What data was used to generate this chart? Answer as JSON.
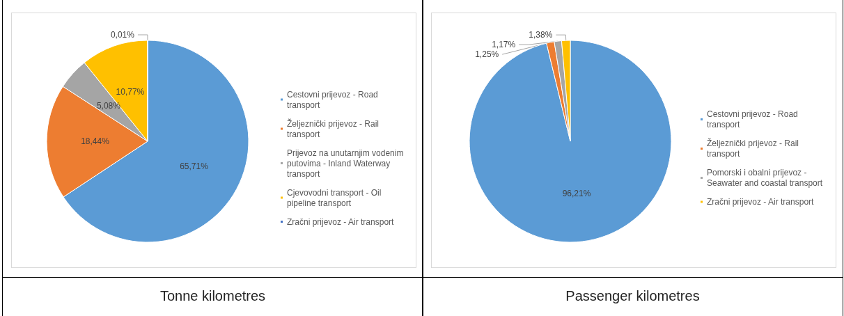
{
  "chart_data": [
    {
      "type": "pie",
      "title": "Tonne kilometres",
      "categories": [
        "Cestovni prijevoz - Road transport",
        "Željeznički prijevoz - Rail transport",
        "Prijevoz na unutarnjim vodenim putovima - Inland Waterway transport",
        "Cjevovodni transport - Oil pipeline transport",
        "Zračni prijevoz - Air transport"
      ],
      "values": [
        65.71,
        18.44,
        5.08,
        10.77,
        0.01
      ],
      "value_labels": [
        "65,71%",
        "18,44%",
        "5,08%",
        "10,77%",
        "0,01%"
      ],
      "colors": [
        "#5b9bd5",
        "#ed7d31",
        "#a5a5a5",
        "#ffc000",
        "#4472c4"
      ],
      "legend": "right"
    },
    {
      "type": "pie",
      "title": "Passenger kilometres",
      "categories": [
        "Cestovni prijevoz - Road transport",
        "Željeznički prijevoz - Rail transport",
        "Pomorski i obalni prijevoz - Seawater and coastal transport",
        "Zračni prijevoz - Air transport"
      ],
      "values": [
        96.21,
        1.25,
        1.17,
        1.38
      ],
      "value_labels": [
        "96,21%",
        "1,25%",
        "1,17%",
        "1,38%"
      ],
      "colors": [
        "#5b9bd5",
        "#ed7d31",
        "#a5a5a5",
        "#ffc000"
      ],
      "legend": "right"
    }
  ]
}
